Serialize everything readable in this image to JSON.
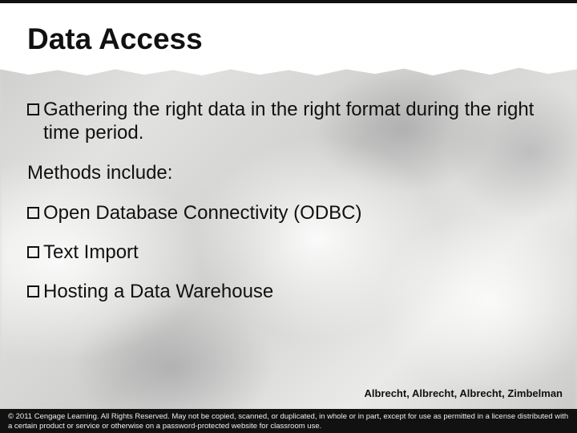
{
  "colors": {
    "text": "#111111",
    "title_strip_bg": "#ffffff",
    "footer_bg": "#111111",
    "footer_text": "#eeeeee",
    "page_bg": "#d8d8d6"
  },
  "typography": {
    "family": "Arial",
    "title_size_pt": 28,
    "body_size_pt": 18,
    "authors_size_pt": 10,
    "footer_size_pt": 7
  },
  "title": "Data Access",
  "body": {
    "items": [
      {
        "type": "bullet",
        "text": "Gathering the right data in the right format during the right time period."
      },
      {
        "type": "plain",
        "text": "Methods include:"
      },
      {
        "type": "bullet",
        "text": "Open Database Connectivity (ODBC)"
      },
      {
        "type": "bullet",
        "text": "Text Import"
      },
      {
        "type": "bullet",
        "text": "Hosting a Data Warehouse"
      }
    ]
  },
  "authors": "Albrecht, Albrecht, Albrecht, Zimbelman",
  "footer": "© 2011 Cengage Learning. All Rights Reserved. May not be copied, scanned, or duplicated, in whole or in part, except for use as permitted in a license distributed with a certain product or service or otherwise on a password-protected website for classroom use."
}
